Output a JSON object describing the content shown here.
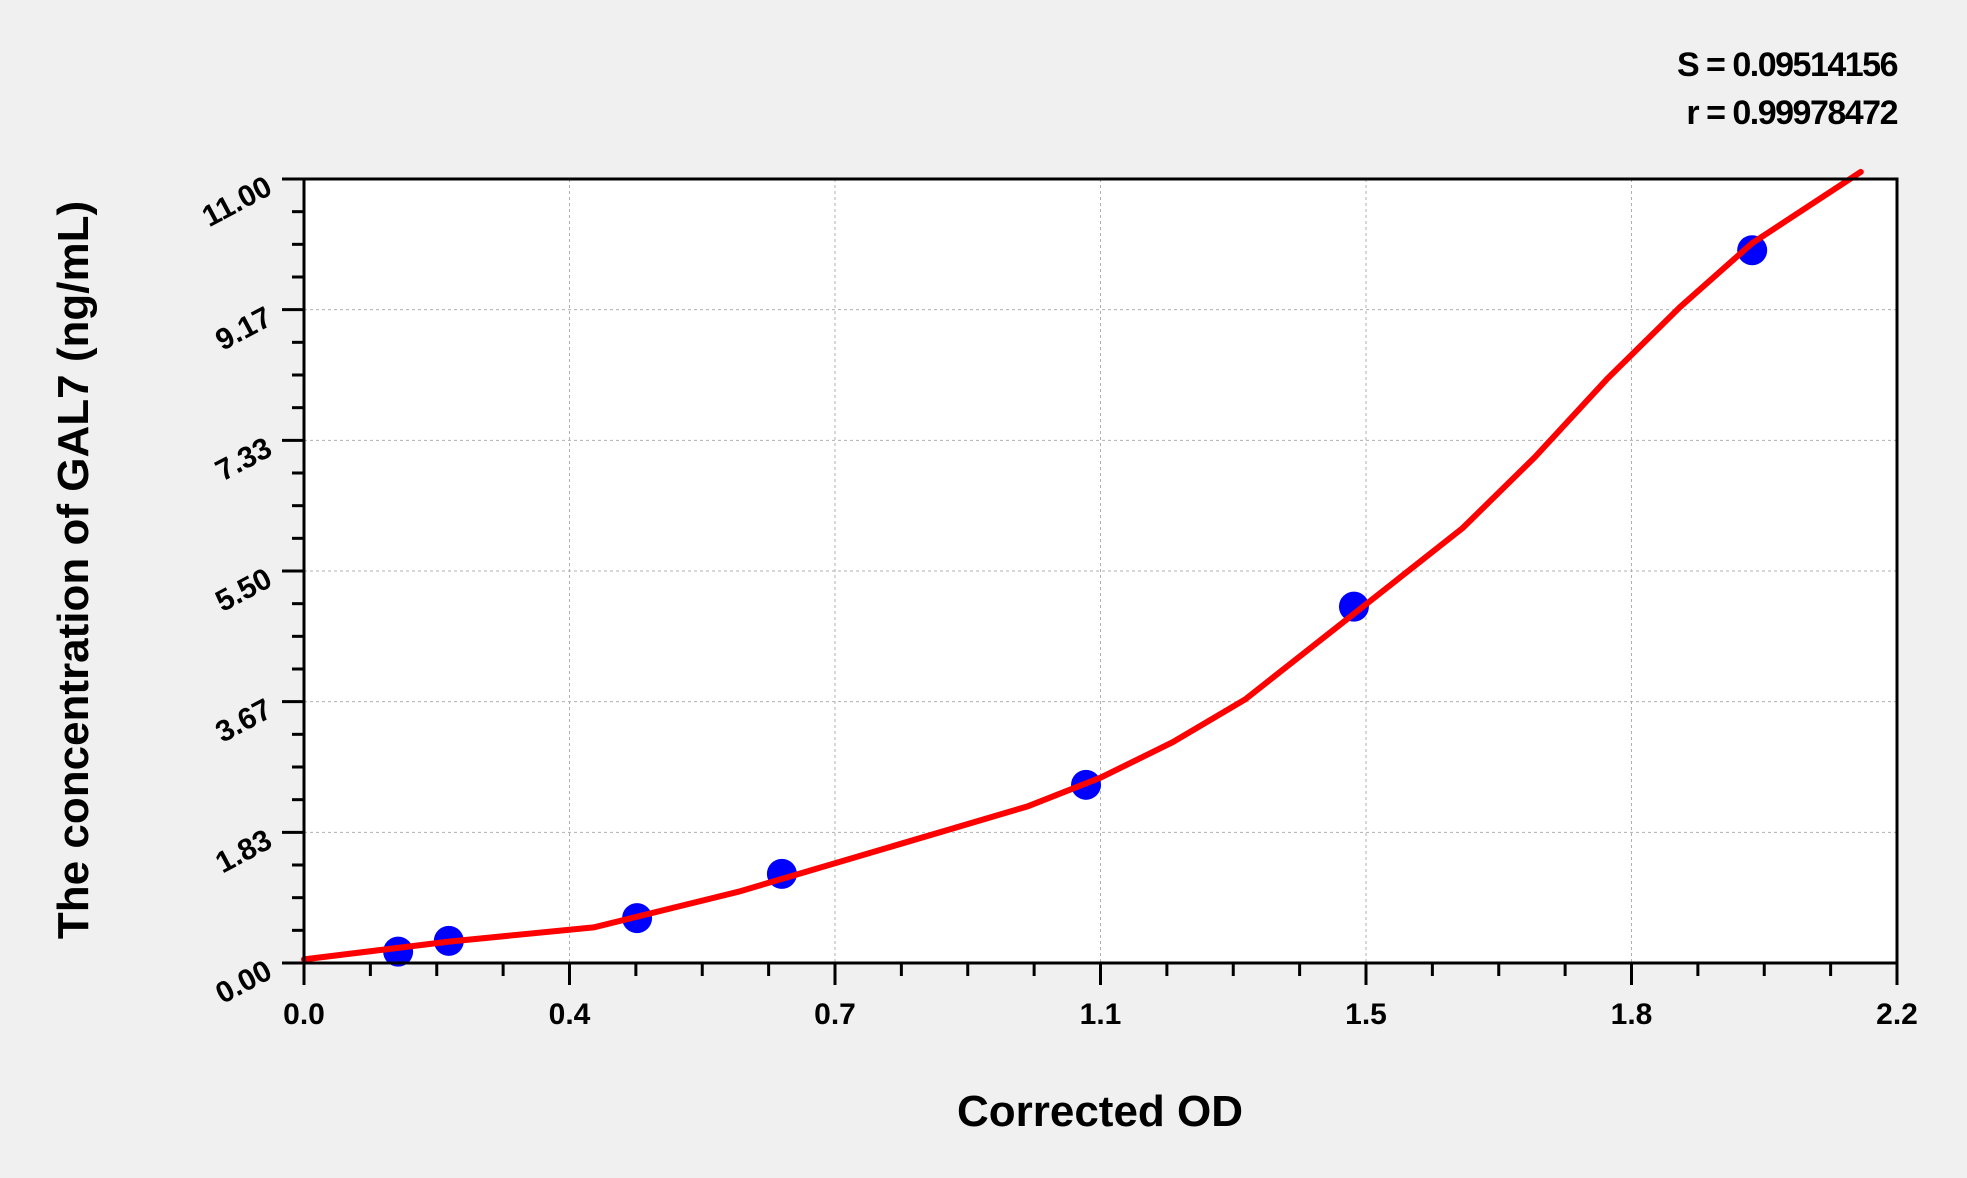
{
  "chart_data": {
    "type": "scatter",
    "title": "",
    "xlabel": "Corrected OD",
    "ylabel": "The concentration of GAL7 (ng/mL)",
    "xlim": [
      0,
      2.2
    ],
    "ylim": [
      0,
      11
    ],
    "x_tick_labels": [
      "0.0",
      "0.4",
      "0.7",
      "1.1",
      "1.5",
      "1.8",
      "2.2"
    ],
    "y_tick_labels": [
      "0.00",
      "1.83",
      "3.67",
      "5.50",
      "7.33",
      "9.17",
      "11.00"
    ],
    "grid": true,
    "annotations": [
      "S = 0.09514156",
      "r = 0.99978472"
    ],
    "points": {
      "x": [
        0.13,
        0.2,
        0.46,
        0.66,
        1.08,
        1.45,
        2.0
      ],
      "y": [
        0.16,
        0.31,
        0.63,
        1.25,
        2.5,
        5.0,
        10.0
      ],
      "color": "#0000ff"
    },
    "fit_curve": {
      "x": [
        0,
        0.2,
        0.4,
        0.6,
        0.8,
        1.0,
        1.1,
        1.2,
        1.3,
        1.4,
        1.5,
        1.6,
        1.7,
        1.8,
        1.9,
        2.0,
        2.15
      ],
      "y": [
        0.05,
        0.3,
        0.5,
        1.0,
        1.6,
        2.2,
        2.6,
        3.1,
        3.7,
        4.5,
        5.3,
        6.1,
        7.1,
        8.2,
        9.2,
        10.1,
        11.1
      ],
      "color": "#ff0000"
    }
  }
}
